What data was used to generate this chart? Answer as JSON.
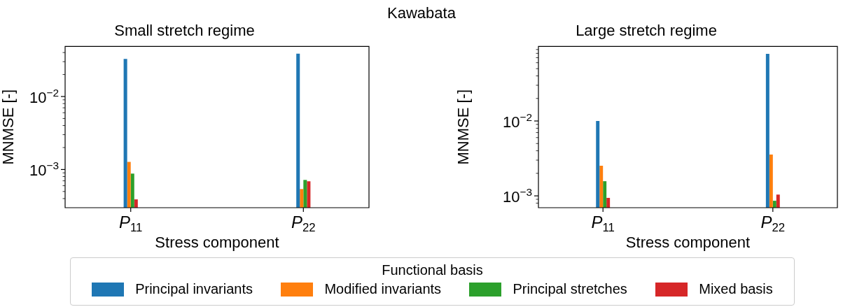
{
  "chart_data": [
    {
      "type": "bar",
      "title": "Small stretch regime",
      "xlabel": "Stress component",
      "ylabel": "MNMSE [-]",
      "legend_title": "Functional basis",
      "legend": "bottom",
      "annotations": [
        "Kawabata"
      ],
      "log": "y",
      "categories": [
        "P$_{11}$",
        "P$_{22}$"
      ],
      "series": [
        {
          "name": "Principal invariants",
          "color": "#1f77b4",
          "values": [
            0.0328,
            0.0385
          ]
        },
        {
          "name": "Modified invariants",
          "color": "#ff7f0e",
          "values": [
            0.00127,
            0.00054
          ]
        },
        {
          "name": "Principal stretches",
          "color": "#2ca02c",
          "values": [
            0.00088,
            0.00072
          ]
        },
        {
          "name": "Mixed basis",
          "color": "#d62728",
          "values": [
            0.00039,
            0.00069
          ]
        }
      ],
      "ylim": [
        0.000314,
        0.0485
      ],
      "yticks": [
        {
          "value": 0.0004,
          "label": null
        },
        {
          "value": 0.0005,
          "label": null
        },
        {
          "value": 0.0006,
          "label": null
        },
        {
          "value": 0.0007,
          "label": null
        },
        {
          "value": 0.0008,
          "label": null
        },
        {
          "value": 0.0009,
          "label": null
        },
        {
          "value": 0.001,
          "label": "10$^{−3}$"
        },
        {
          "value": 0.002,
          "label": null
        },
        {
          "value": 0.003,
          "label": null
        },
        {
          "value": 0.004,
          "label": null
        },
        {
          "value": 0.005,
          "label": null
        },
        {
          "value": 0.006,
          "label": null
        },
        {
          "value": 0.007,
          "label": null
        },
        {
          "value": 0.008,
          "label": null
        },
        {
          "value": 0.009,
          "label": null
        },
        {
          "value": 0.01,
          "label": "10$^{−2}$"
        },
        {
          "value": 0.02,
          "label": null
        },
        {
          "value": 0.03,
          "label": null
        },
        {
          "value": 0.04,
          "label": null
        }
      ]
    },
    {
      "type": "bar",
      "title": "Large stretch regime",
      "xlabel": "Stress component",
      "ylabel": "MNMSE [-]",
      "log": "y",
      "categories": [
        "P$_{11}$",
        "P$_{22}$"
      ],
      "series": [
        {
          "color": "#1f77b4",
          "values": [
            0.01,
            0.0789
          ]
        },
        {
          "color": "#ff7f0e",
          "values": [
            0.00252,
            0.00357
          ]
        },
        {
          "color": "#2ca02c",
          "values": [
            0.00157,
            0.00086
          ]
        },
        {
          "color": "#d62728",
          "values": [
            0.00094,
            0.00104
          ]
        }
      ],
      "ylim": [
        0.000695,
        0.099
      ],
      "yticks": [
        {
          "value": 0.0008,
          "label": null
        },
        {
          "value": 0.0009,
          "label": null
        },
        {
          "value": 0.001,
          "label": "10$^{−3}$"
        },
        {
          "value": 0.002,
          "label": null
        },
        {
          "value": 0.003,
          "label": null
        },
        {
          "value": 0.004,
          "label": null
        },
        {
          "value": 0.005,
          "label": null
        },
        {
          "value": 0.006,
          "label": null
        },
        {
          "value": 0.007,
          "label": null
        },
        {
          "value": 0.008,
          "label": null
        },
        {
          "value": 0.009,
          "label": null
        },
        {
          "value": 0.01,
          "label": "10$^{−2}$"
        },
        {
          "value": 0.02,
          "label": null
        },
        {
          "value": 0.03,
          "label": null
        },
        {
          "value": 0.04,
          "label": null
        },
        {
          "value": 0.05,
          "label": null
        },
        {
          "value": 0.06,
          "label": null
        },
        {
          "value": 0.07,
          "label": null
        },
        {
          "value": 0.08,
          "label": null
        },
        {
          "value": 0.09,
          "label": null
        }
      ]
    }
  ]
}
